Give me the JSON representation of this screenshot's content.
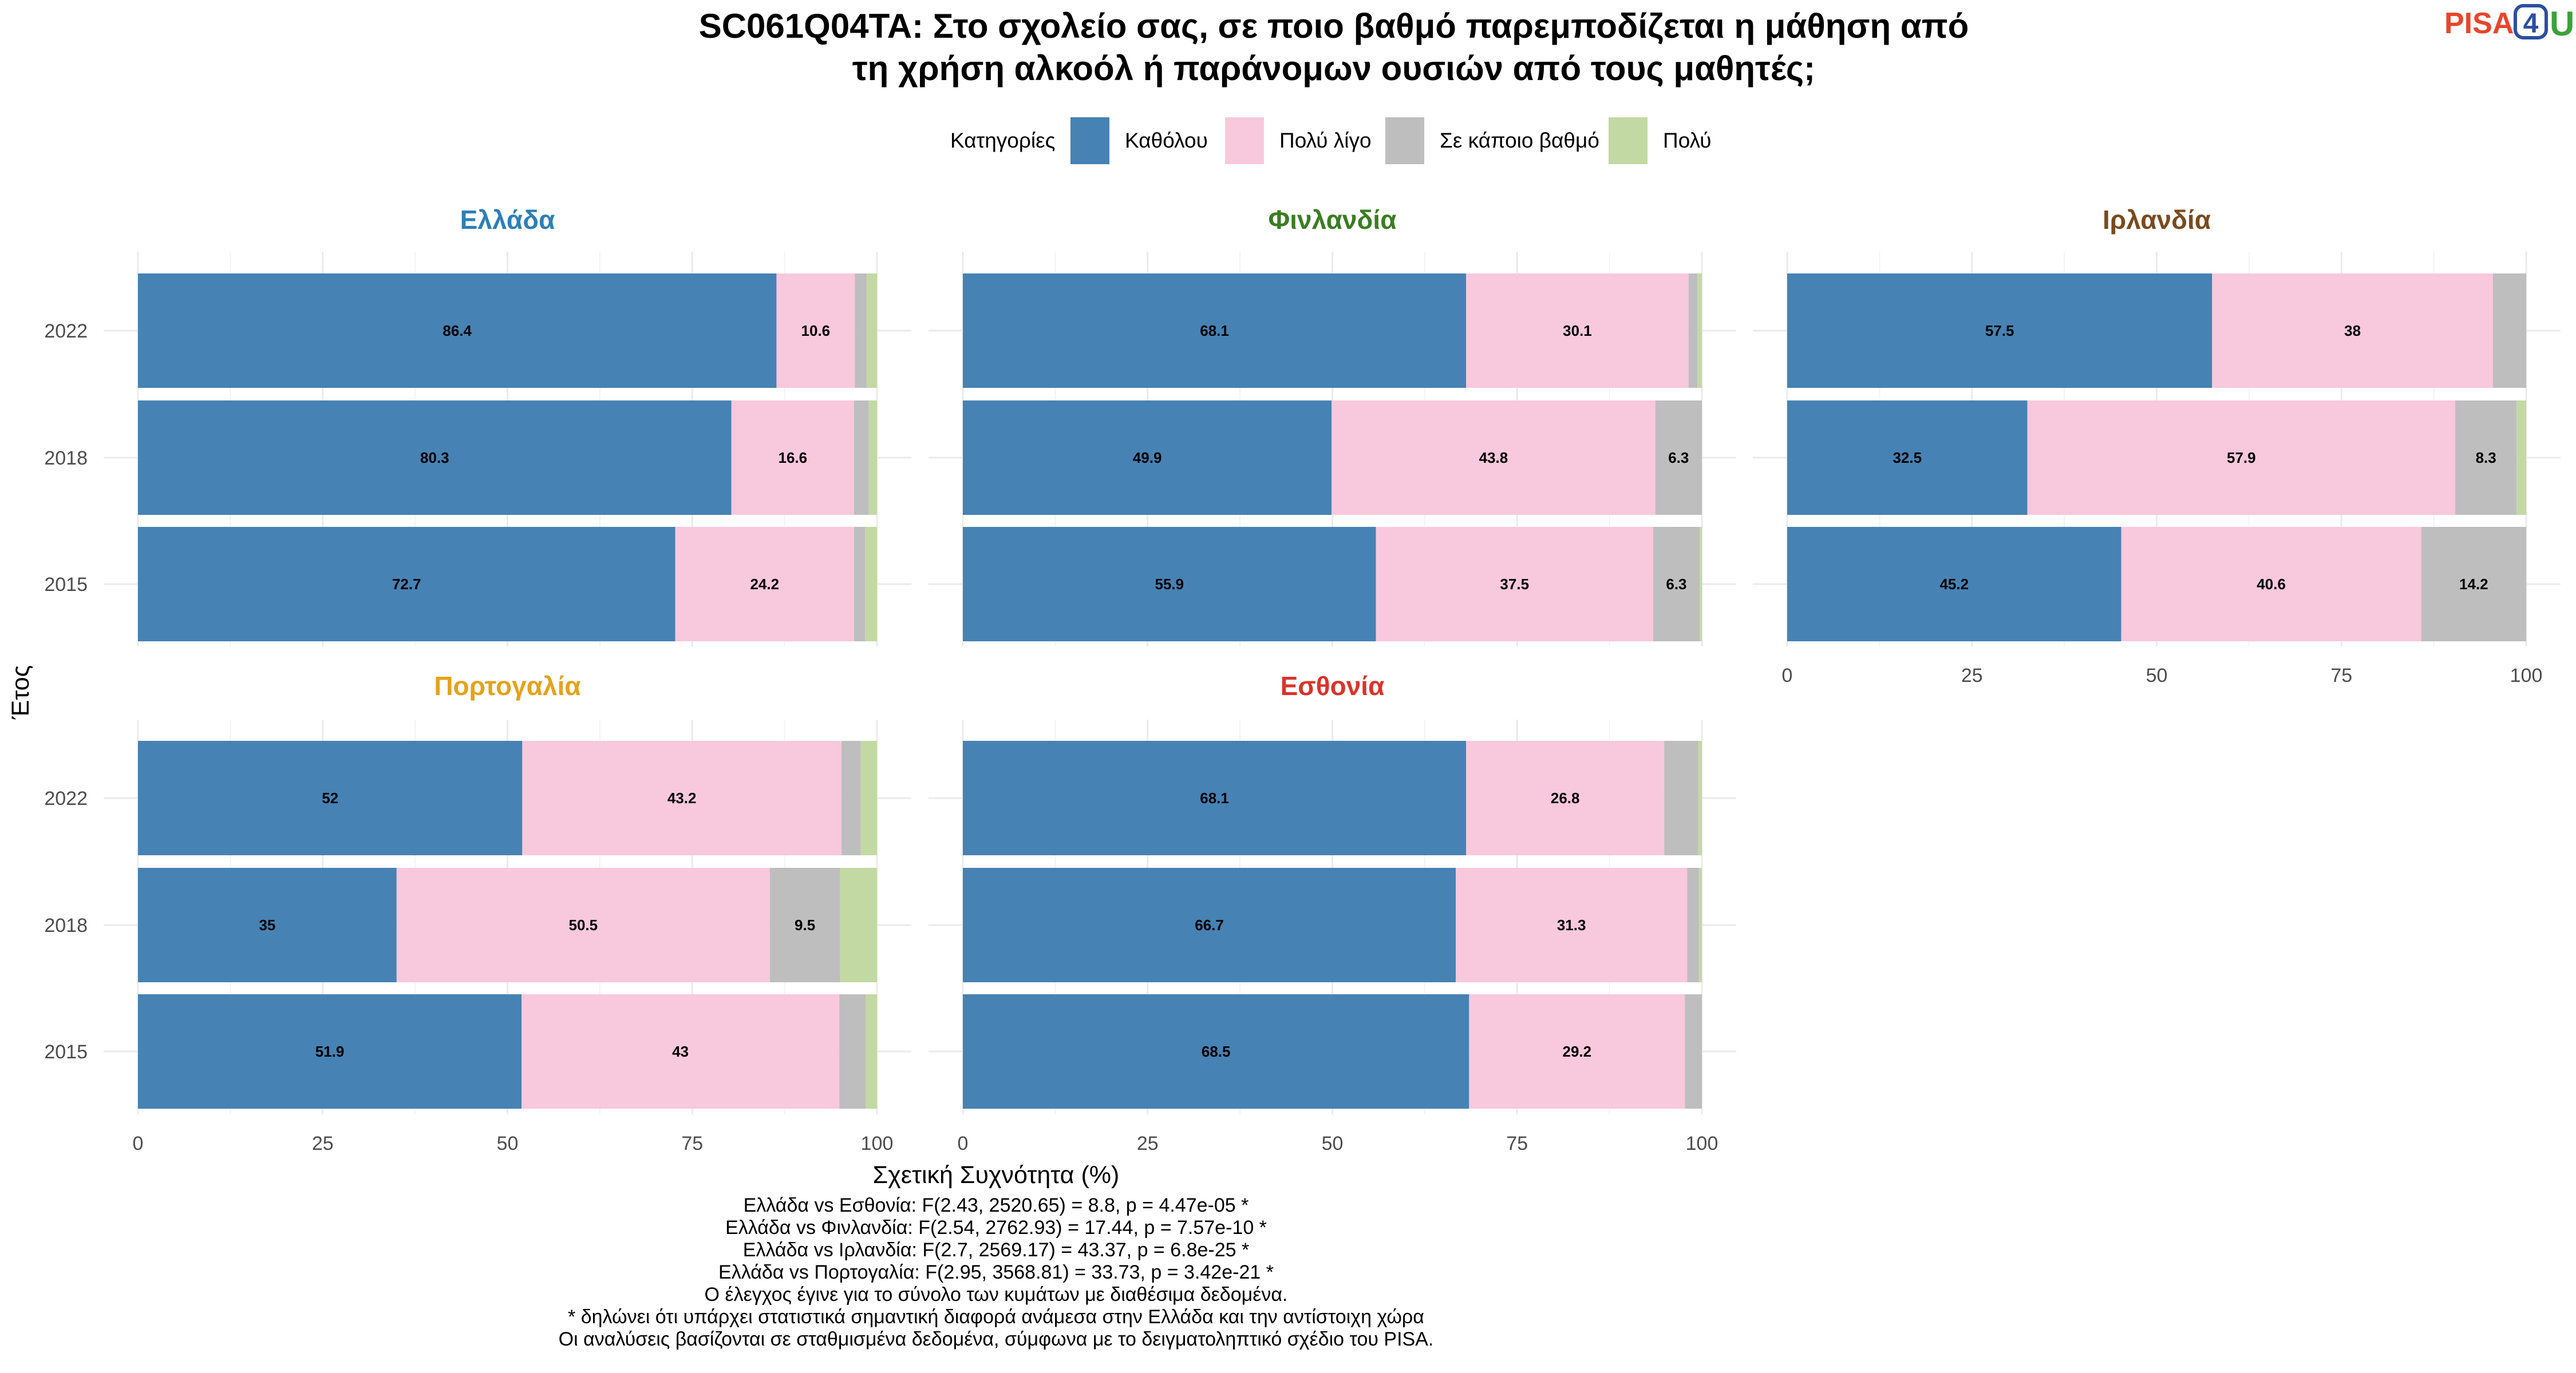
{
  "chart_data": {
    "type": "bar",
    "orientation": "horizontal",
    "stacked": true,
    "title": "SC061Q04TA: Στο σχολείο σας, σε ποιο βαθμό παρεμποδίζεται η μάθηση από",
    "title_line2": "τη χρήση αλκοόλ ή παράνομων ουσιών από τους μαθητές;",
    "logo": "PISA4U",
    "legend": {
      "title": "Κατηγορίες",
      "position": "top",
      "items": [
        {
          "name": "Καθόλου",
          "color": "#4682b4"
        },
        {
          "name": "Πολύ λίγο",
          "color": "#f8c8dc"
        },
        {
          "name": "Σε κάποιο βαθμό",
          "color": "#bebebe"
        },
        {
          "name": "Πολύ",
          "color": "#c3d9a4"
        }
      ]
    },
    "xlabel": "Σχετική Συχνότητα (%)",
    "ylabel": "Έτος",
    "xlim": [
      0,
      100
    ],
    "xticks": [
      0,
      25,
      50,
      75,
      100
    ],
    "categories": [
      "2022",
      "2018",
      "2015"
    ],
    "grid": true,
    "panels": [
      {
        "name": "Ελλάδα",
        "color": "#2c7fb8",
        "bars": {
          "2022": [
            86.4,
            10.6,
            1.6,
            1.4
          ],
          "2018": [
            80.3,
            16.6,
            2.0,
            1.1
          ],
          "2015": [
            72.7,
            24.2,
            1.5,
            1.6
          ]
        },
        "labels": {
          "2022": [
            "86.4",
            "10.6",
            "",
            ""
          ],
          "2018": [
            "80.3",
            "16.6",
            "",
            ""
          ],
          "2015": [
            "72.7",
            "24.2",
            "",
            ""
          ]
        }
      },
      {
        "name": "Φινλανδία",
        "color": "#3a7d22",
        "bars": {
          "2022": [
            68.1,
            30.1,
            1.2,
            0.6
          ],
          "2018": [
            49.9,
            43.8,
            6.3,
            0
          ],
          "2015": [
            55.9,
            37.5,
            6.3,
            0.3
          ]
        },
        "labels": {
          "2022": [
            "68.1",
            "30.1",
            "",
            ""
          ],
          "2018": [
            "49.9",
            "43.8",
            "6.3",
            ""
          ],
          "2015": [
            "55.9",
            "37.5",
            "6.3",
            ""
          ]
        }
      },
      {
        "name": "Ιρλανδία",
        "color": "#7a4a1e",
        "bars": {
          "2022": [
            57.5,
            38,
            4.5,
            0
          ],
          "2018": [
            32.5,
            57.9,
            8.3,
            1.3
          ],
          "2015": [
            45.2,
            40.6,
            14.2,
            0
          ]
        },
        "labels": {
          "2022": [
            "57.5",
            "38",
            "",
            ""
          ],
          "2018": [
            "32.5",
            "57.9",
            "8.3",
            ""
          ],
          "2015": [
            "45.2",
            "40.6",
            "14.2",
            ""
          ]
        }
      },
      {
        "name": "Πορτογαλία",
        "color": "#e6a21a",
        "bars": {
          "2022": [
            52,
            43.2,
            2.6,
            2.2
          ],
          "2018": [
            35,
            50.5,
            9.5,
            5.0
          ],
          "2015": [
            51.9,
            43,
            3.6,
            1.5
          ]
        },
        "labels": {
          "2022": [
            "52",
            "43.2",
            "",
            ""
          ],
          "2018": [
            "35",
            "50.5",
            "9.5",
            ""
          ],
          "2015": [
            "51.9",
            "43",
            "",
            ""
          ]
        }
      },
      {
        "name": "Εσθονία",
        "color": "#d9342b",
        "bars": {
          "2022": [
            68.1,
            26.8,
            4.6,
            0.5
          ],
          "2018": [
            66.7,
            31.3,
            1.6,
            0.4
          ],
          "2015": [
            68.5,
            29.2,
            2.3,
            0
          ]
        },
        "labels": {
          "2022": [
            "68.1",
            "26.8",
            "",
            ""
          ],
          "2018": [
            "66.7",
            "31.3",
            "",
            ""
          ],
          "2015": [
            "68.5",
            "29.2",
            "",
            ""
          ]
        }
      }
    ],
    "caption": [
      "Ελλάδα vs Εσθονία: F(2.43, 2520.65) = 8.8, p = 4.47e-05 *",
      "Ελλάδα vs Φινλανδία: F(2.54, 2762.93) = 17.44, p = 7.57e-10 *",
      "Ελλάδα vs Ιρλανδία: F(2.7, 2569.17) = 43.37, p = 6.8e-25 *",
      "Ελλάδα vs Πορτογαλία: F(2.95, 3568.81) = 33.73, p = 3.42e-21 *",
      "Ο έλεγχος έγινε για το σύνολο των κυμάτων με διαθέσιμα δεδομένα.",
      "* δηλώνει ότι υπάρχει στατιστικά σημαντική διαφορά ανάμεσα στην Ελλάδα και την αντίστοιχη χώρα",
      "Οι αναλύσεις βασίζονται σε σταθμισμένα δεδομένα, σύμφωνα με το δειγματοληπτικό σχέδιο του PISA."
    ]
  }
}
